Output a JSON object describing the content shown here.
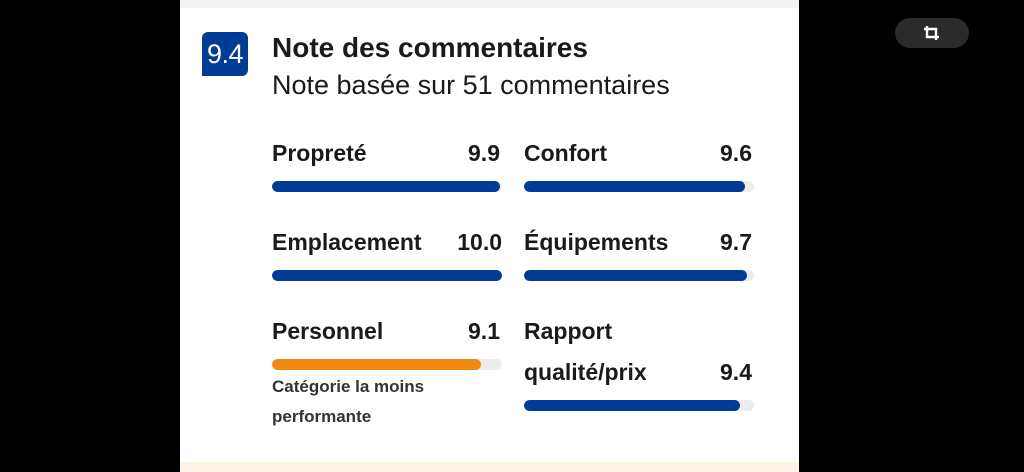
{
  "review": {
    "score": "9.4",
    "title": "Note des commentaires",
    "subtitle": "Note basée sur 51 commentaires"
  },
  "categories": [
    {
      "label": "Propreté",
      "score": "9.9",
      "value": 9.9,
      "color": "#003b95"
    },
    {
      "label": "Confort",
      "score": "9.6",
      "value": 9.6,
      "color": "#003b95"
    },
    {
      "label": "Emplacement",
      "score": "10.0",
      "value": 10.0,
      "color": "#003b95"
    },
    {
      "label": "Équipements",
      "score": "9.7",
      "value": 9.7,
      "color": "#003b95"
    },
    {
      "label": "Personnel",
      "score": "9.1",
      "value": 9.1,
      "color": "#f08a14",
      "note": "Catégorie la moins performante"
    },
    {
      "label_line1": "Rapport",
      "label_line2": "qualité/prix",
      "score": "9.4",
      "value": 9.4,
      "color": "#003b95"
    }
  ],
  "toolbar": {
    "crop_icon": "crop-icon"
  }
}
